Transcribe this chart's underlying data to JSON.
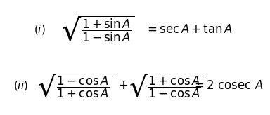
{
  "background_color": "#ffffff",
  "equation_i_label": "$(i)$",
  "equation_i_lhs": "$\\sqrt{\\dfrac{1+\\sin A}{1-\\sin A}}$",
  "equation_i_rhs": "$= \\sec A + \\tan A$",
  "equation_ii_label": "$(ii)$",
  "equation_ii_lhs": "$\\sqrt{\\dfrac{1-\\cos A}{1+\\cos A}}$",
  "equation_ii_plus": "$+$",
  "equation_ii_lhs2": "$\\sqrt{\\dfrac{1+\\cos A}{1-\\cos A}}$",
  "equation_ii_rhs": "$= 2\\ \\mathrm{cosec}\\ A$",
  "text_color": "#000000",
  "fontsize_label": 11,
  "fontsize_eq": 12
}
